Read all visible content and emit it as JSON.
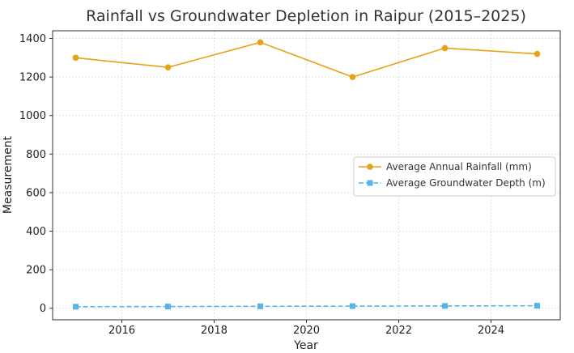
{
  "chart_data": {
    "type": "line",
    "title": "Rainfall vs Groundwater Depletion in Raipur (2015–2025)",
    "xlabel": "Year",
    "ylabel": "Measurement",
    "x": [
      2015,
      2017,
      2019,
      2021,
      2023,
      2025
    ],
    "series": [
      {
        "name": "Average Annual Rainfall (mm)",
        "values": [
          1300,
          1250,
          1380,
          1200,
          1350,
          1320
        ],
        "color": "#E6A317",
        "linestyle": "solid",
        "marker": "circle"
      },
      {
        "name": "Average Groundwater Depth (m)",
        "values": [
          8,
          9,
          10,
          11,
          12,
          13
        ],
        "color": "#56B4E9",
        "linestyle": "dashed",
        "marker": "square"
      }
    ],
    "xticks": [
      "2016",
      "2018",
      "2020",
      "2022",
      "2024"
    ],
    "yticks": [
      "0",
      "200",
      "400",
      "600",
      "800",
      "1000",
      "1200",
      "1400"
    ],
    "xlim": [
      2014.5,
      2025.5
    ],
    "ylim": [
      -60,
      1440
    ],
    "grid": true,
    "legend_position": "center-right"
  }
}
